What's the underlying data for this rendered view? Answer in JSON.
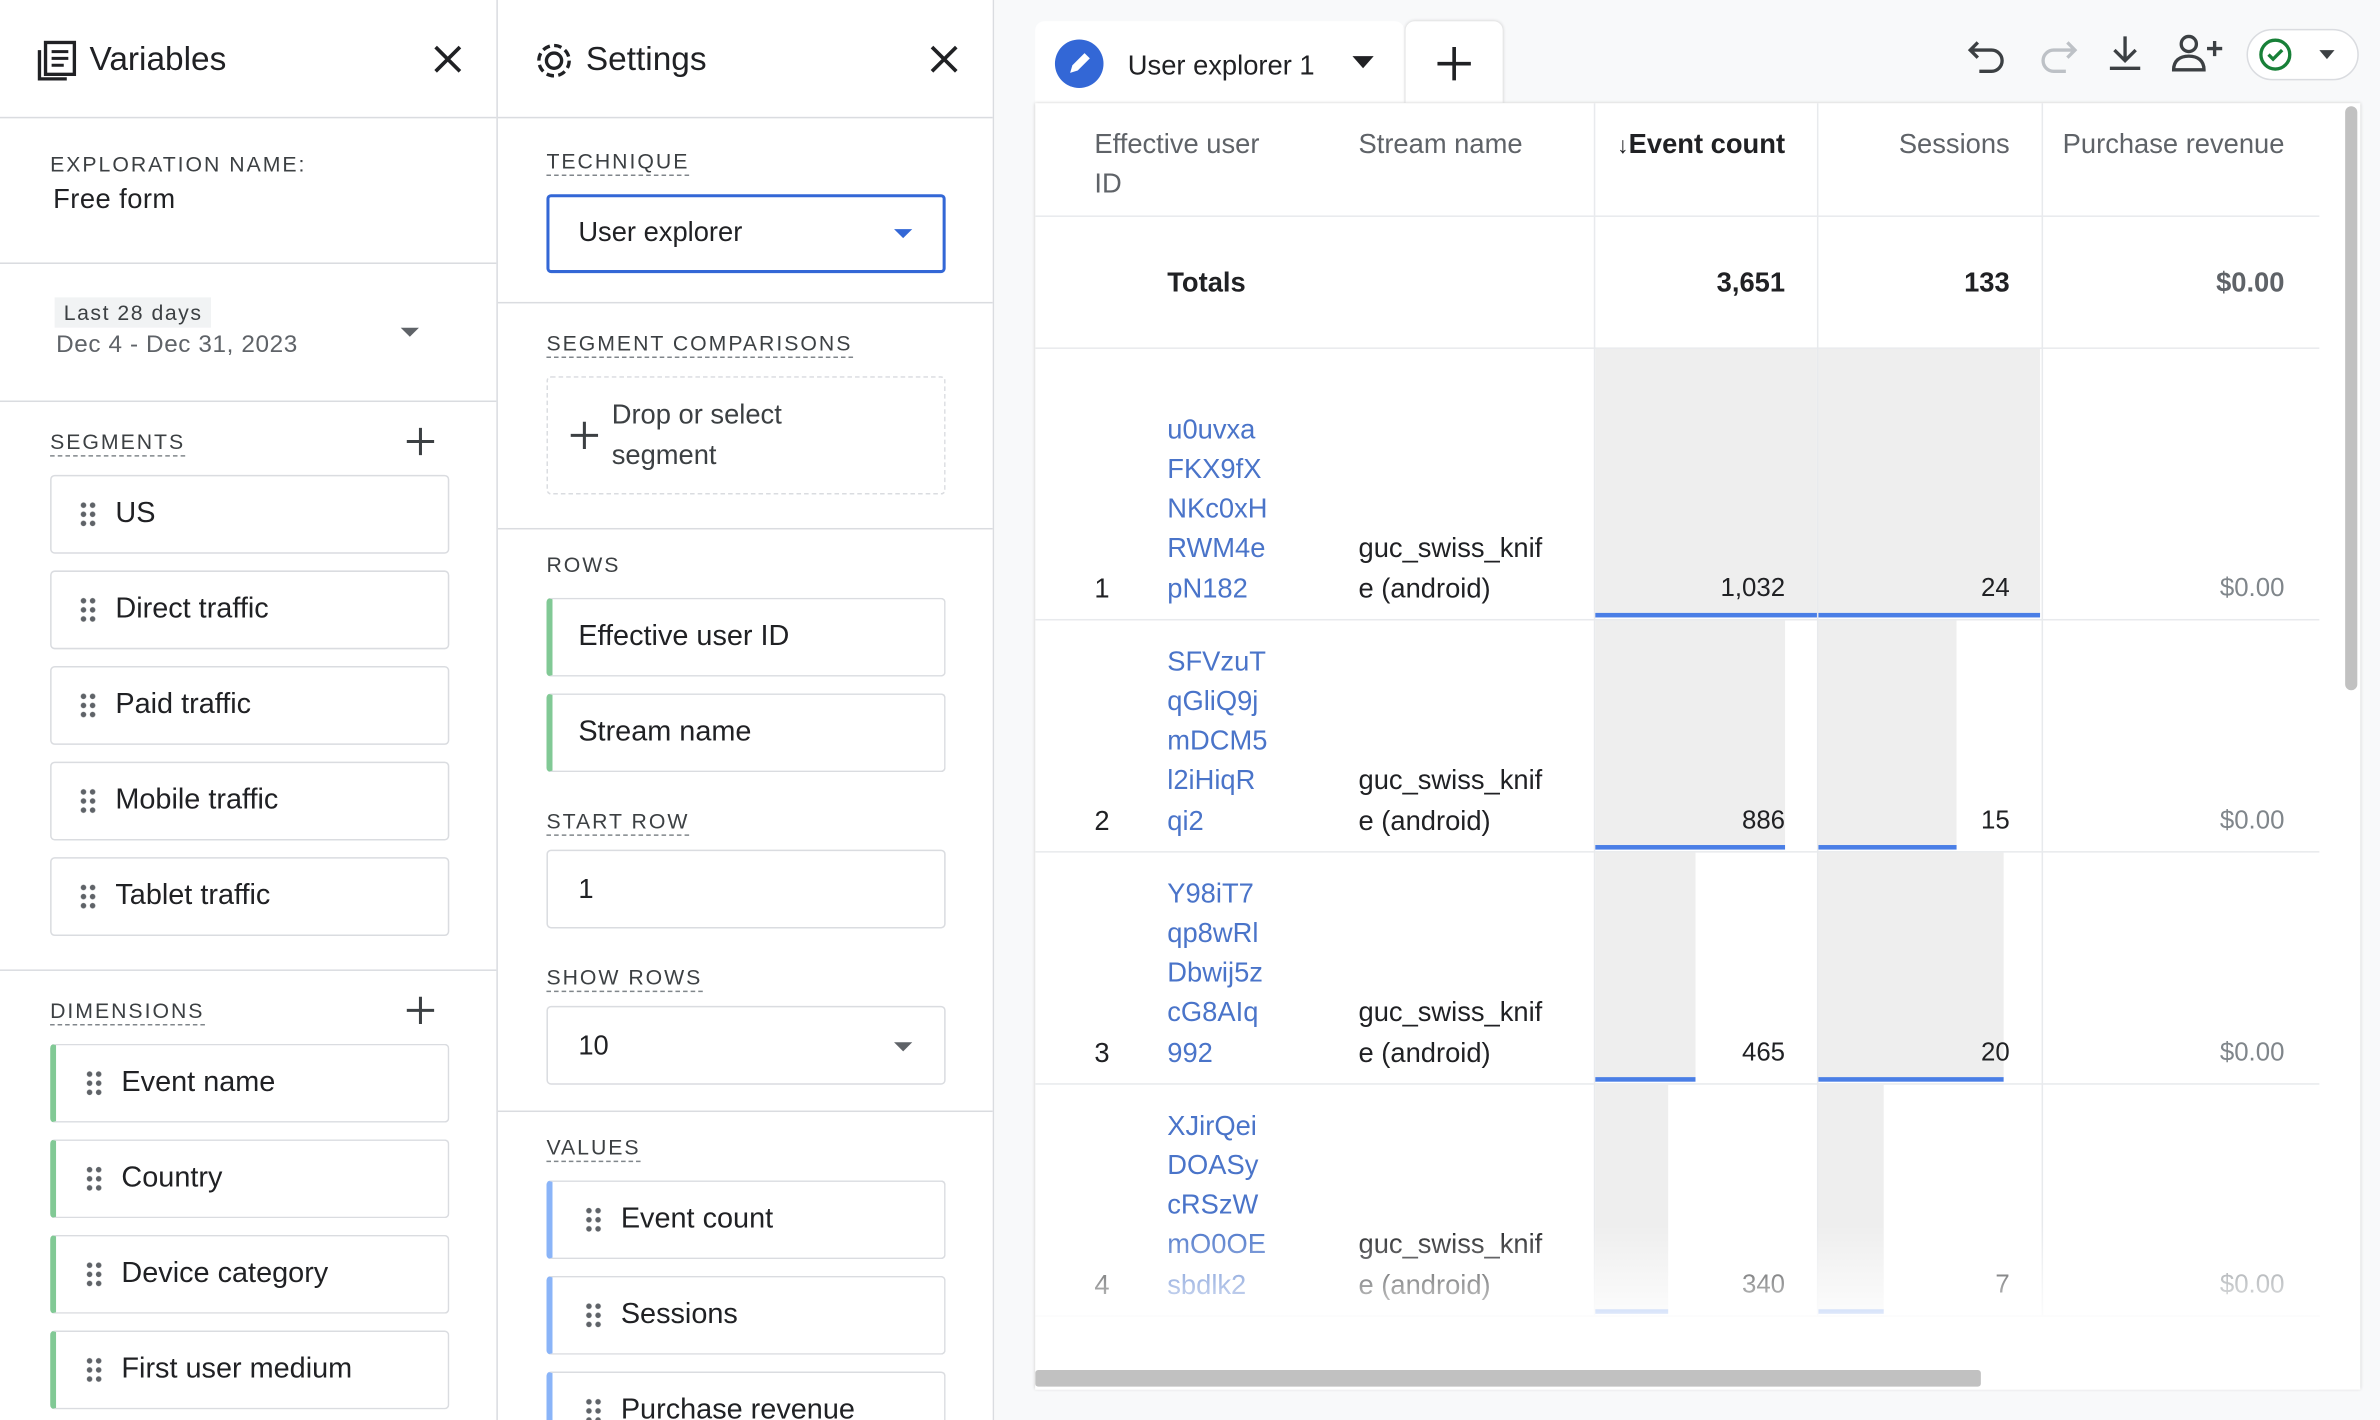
{
  "variables": {
    "title": "Variables",
    "exploration_name_label": "EXPLORATION NAME:",
    "exploration_name": "Free form",
    "date_badge": "Last 28 days",
    "date_range": "Dec 4 - Dec 31, 2023",
    "segments_label": "SEGMENTS",
    "segments": [
      "US",
      "Direct traffic",
      "Paid traffic",
      "Mobile traffic",
      "Tablet traffic"
    ],
    "dimensions_label": "DIMENSIONS",
    "dimensions": [
      "Event name",
      "Country",
      "Device category",
      "First user medium"
    ]
  },
  "settings": {
    "title": "Settings",
    "technique_label": "TECHNIQUE",
    "technique": "User explorer",
    "segment_comparisons_label": "SEGMENT COMPARISONS",
    "segment_placeholder": "Drop or select segment",
    "rows_label": "ROWS",
    "rows": [
      "Effective user ID",
      "Stream name"
    ],
    "start_row_label": "START ROW",
    "start_row": "1",
    "show_rows_label": "SHOW ROWS",
    "show_rows": "10",
    "values_label": "VALUES",
    "values": [
      "Event count",
      "Sessions",
      "Purchase revenue"
    ]
  },
  "tab": {
    "title": "User explorer 1"
  },
  "table": {
    "columns": [
      "Effective user ID",
      "Stream name",
      "Event count",
      "Sessions",
      "Purchase revenue"
    ],
    "totals_label": "Totals",
    "totals": [
      "3,651",
      "133",
      "$0.00"
    ],
    "rows": [
      {
        "index": "1",
        "user_id": "u0uvxaFKX9fXNKc0xHRWM4epN182",
        "stream": "guc_swiss_knife (android)",
        "event_count": {
          "value": 1032,
          "label": "1,032"
        },
        "sessions": 24,
        "purchase_revenue": "$0.00"
      },
      {
        "index": "2",
        "user_id": "SFVzuTqGliQ9jmDCM5l2iHiqRqi2",
        "stream": "guc_swiss_knife (android)",
        "event_count": 886,
        "sessions": 15,
        "purchase_revenue": "$0.00"
      },
      {
        "index": "3",
        "user_id": "Y98iT7qp8wRlDbwij5zcG8AIq992",
        "stream": "guc_swiss_knife (android)",
        "event_count": 465,
        "sessions": 20,
        "purchase_revenue": "$0.00"
      },
      {
        "index": "4",
        "user_id": "XJirQeiDOASycRSzWmO0OEsbdlk2",
        "stream": "guc_swiss_knife (android)",
        "event_count": 340,
        "sessions": 7,
        "purchase_revenue": "$0.00"
      }
    ]
  }
}
